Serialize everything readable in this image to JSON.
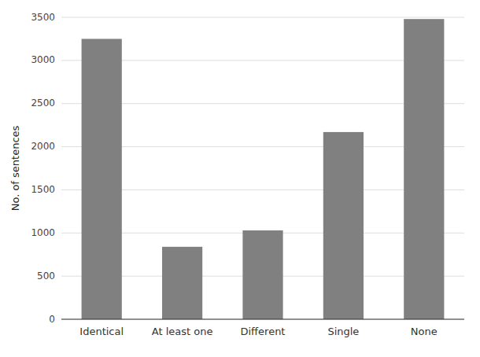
{
  "chart_data": {
    "type": "bar",
    "categories": [
      "Identical",
      "At least one",
      "Different",
      "Single",
      "None"
    ],
    "values": [
      3250,
      840,
      1030,
      2170,
      3480
    ],
    "color": "#808080",
    "ylabel": "No. of sentences",
    "ylim": [
      0,
      3500
    ],
    "yticks": [
      0,
      500,
      1000,
      1500,
      2000,
      2500,
      3000,
      3500
    ],
    "grid": true
  }
}
